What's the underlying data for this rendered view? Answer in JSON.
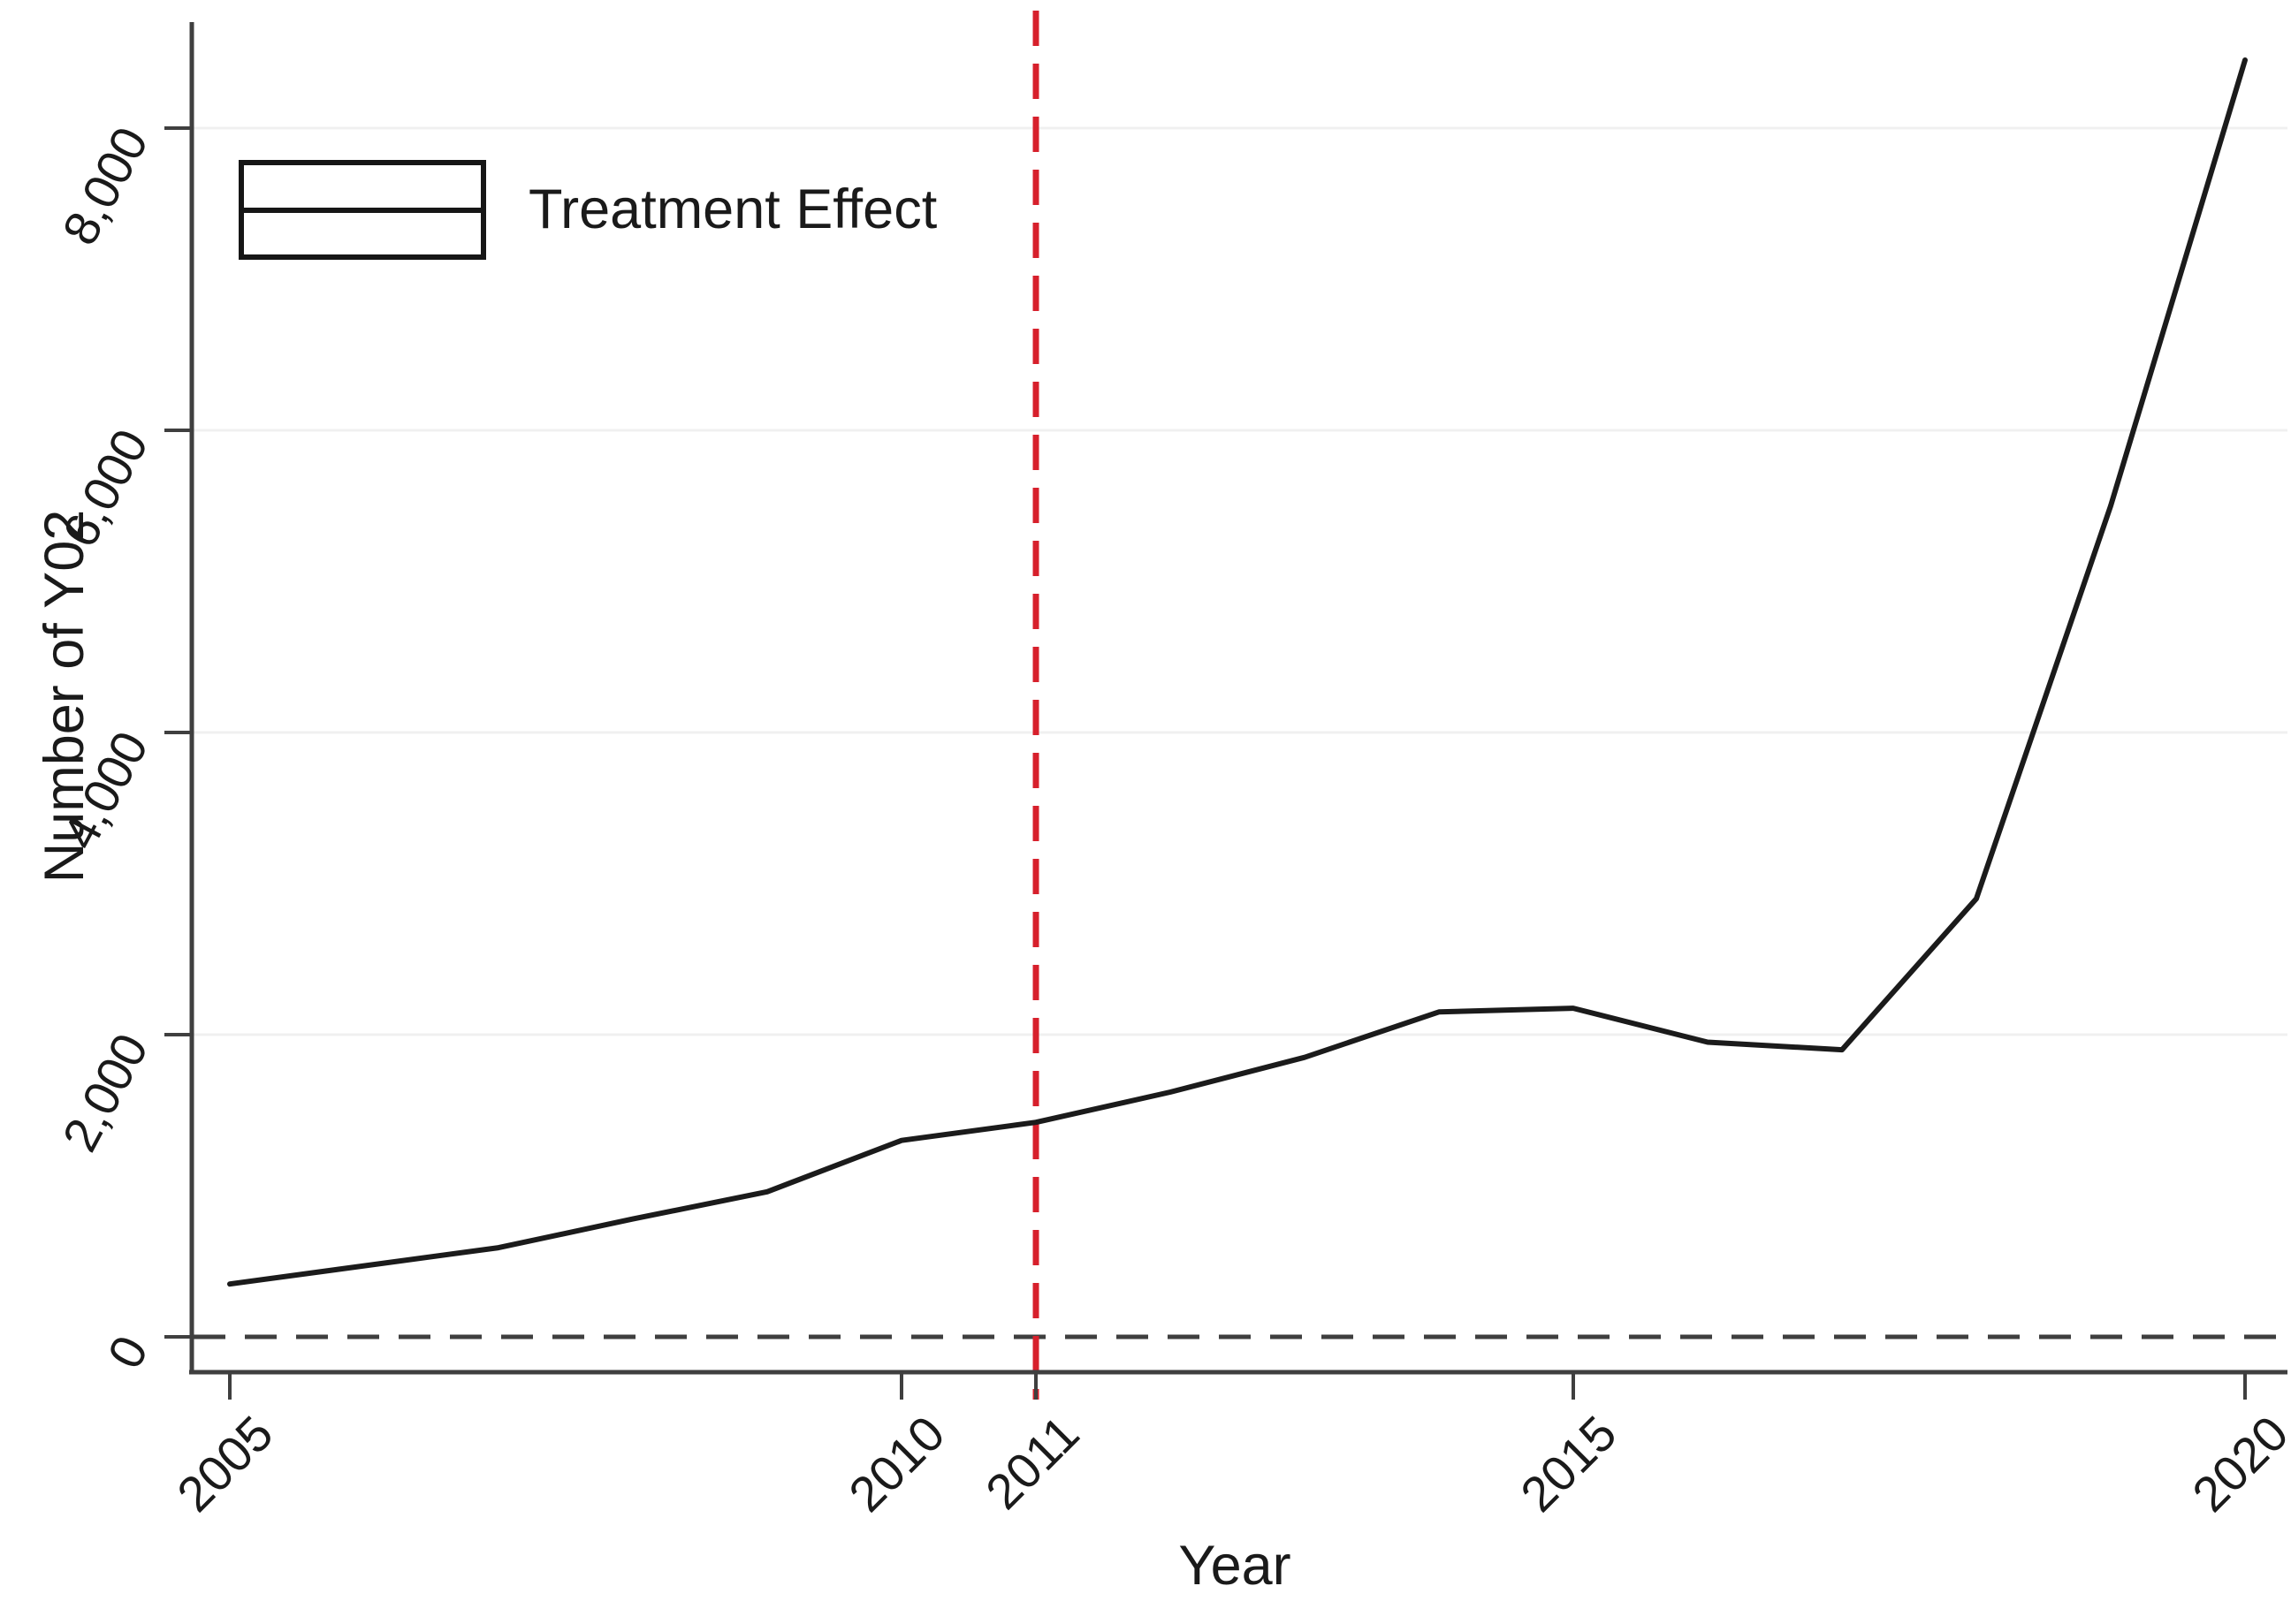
{
  "figure": {
    "legend": {
      "label": "Treatment Effect"
    },
    "x_axis": {
      "title": "Year",
      "ticks": [
        {
          "label": "2005",
          "year": 2005
        },
        {
          "label": "2010",
          "year": 2010
        },
        {
          "label": "2011",
          "year": 2011
        },
        {
          "label": "2015",
          "year": 2015
        },
        {
          "label": "2020",
          "year": 2020
        }
      ]
    },
    "y_axis": {
      "title": "Number of Y02",
      "ticks": [
        {
          "label": "0",
          "value": 0
        },
        {
          "label": "2,000",
          "value": 2000
        },
        {
          "label": "4,000",
          "value": 4000
        },
        {
          "label": "6,000",
          "value": 6000
        },
        {
          "label": "8,000",
          "value": 8000
        }
      ]
    },
    "colors": {
      "background": "#ffffff",
      "data_line": "#1b1b1b",
      "axis": "#3f3f3f",
      "tick": "#3f3f3f",
      "grid": "#f0f0f0",
      "zero_line": "#3f3f3f",
      "treatment_vline": "#d7202c",
      "text": "#1a1a1a"
    }
  },
  "chart_data": {
    "type": "line",
    "title": "",
    "xlabel": "Year",
    "ylabel": "Number of Y02",
    "x": [
      2005,
      2006,
      2007,
      2008,
      2009,
      2010,
      2011,
      2012,
      2013,
      2014,
      2015,
      2016,
      2017,
      2018,
      2019,
      2020
    ],
    "series": [
      {
        "name": "Treatment Effect",
        "values": [
          350,
          470,
          590,
          780,
          960,
          1300,
          1420,
          1620,
          1850,
          2150,
          2175,
          1950,
          1900,
          2900,
          5500,
          8450
        ]
      }
    ],
    "x_ticks": [
      2005,
      2010,
      2011,
      2015,
      2020
    ],
    "y_ticks": [
      0,
      2000,
      4000,
      6000,
      8000
    ],
    "xlim": [
      2004.7,
      2020.3
    ],
    "ylim": [
      -230,
      8700
    ],
    "grid": "horizontal-light",
    "legend_position": "top-left-inside",
    "annotations": [
      {
        "type": "vline",
        "x": 2011,
        "style": "dashed",
        "color": "#d7202c",
        "meaning": "treatment year"
      },
      {
        "type": "hline",
        "y": 0,
        "style": "dashed",
        "color": "#3f3f3f",
        "meaning": "zero baseline"
      }
    ]
  }
}
